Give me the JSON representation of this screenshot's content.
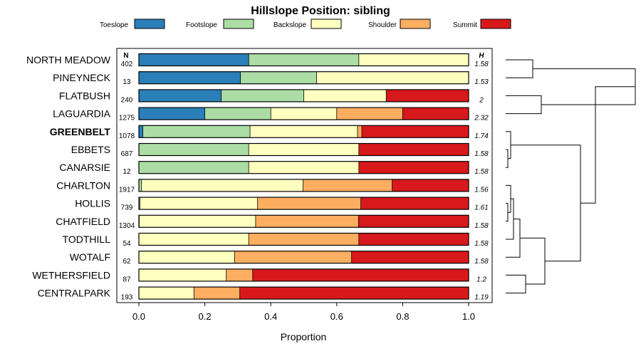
{
  "chart_data": {
    "type": "bar",
    "orientation": "horizontal-stacked",
    "title": "Hillslope Position: sibling",
    "xlabel": "Proportion",
    "ylabel": "",
    "xlim": [
      0,
      1
    ],
    "xticks": [
      0.0,
      0.2,
      0.4,
      0.6,
      0.8,
      1.0
    ],
    "xtick_labels": [
      "0.0",
      "0.2",
      "0.4",
      "0.6",
      "0.8",
      "1.0"
    ],
    "n_header": "N",
    "h_header": "H",
    "legend": [
      {
        "name": "Toeslope",
        "color": "#2b7fb9"
      },
      {
        "name": "Footslope",
        "color": "#abdda4"
      },
      {
        "name": "Backslope",
        "color": "#ffffbf"
      },
      {
        "name": "Shoulder",
        "color": "#fdae61"
      },
      {
        "name": "Summit",
        "color": "#d7191c"
      }
    ],
    "series_names": [
      "Toeslope",
      "Footslope",
      "Backslope",
      "Shoulder",
      "Summit"
    ],
    "rows": [
      {
        "name": "NORTH MEADOW",
        "bold": false,
        "n": "402",
        "h": "1.58",
        "values": [
          0.333,
          0.334,
          0.333,
          0,
          0
        ]
      },
      {
        "name": "PINEYNECK",
        "bold": false,
        "n": "13",
        "h": "1.53",
        "values": [
          0.308,
          0.231,
          0.461,
          0,
          0
        ]
      },
      {
        "name": "FLATBUSH",
        "bold": false,
        "n": "240",
        "h": "2",
        "values": [
          0.25,
          0.25,
          0.25,
          0,
          0.25
        ]
      },
      {
        "name": "LAGUARDIA",
        "bold": false,
        "n": "1275",
        "h": "2.32",
        "values": [
          0.2,
          0.2,
          0.2,
          0.2,
          0.2
        ]
      },
      {
        "name": "GREENBELT",
        "bold": true,
        "n": "1078",
        "h": "1.74",
        "values": [
          0.012,
          0.325,
          0.326,
          0.013,
          0.324
        ]
      },
      {
        "name": "EBBETS",
        "bold": false,
        "n": "687",
        "h": "1.58",
        "values": [
          0,
          0.333,
          0.334,
          0,
          0.333
        ]
      },
      {
        "name": "CANARSIE",
        "bold": false,
        "n": "12",
        "h": "1.58",
        "values": [
          0,
          0.333,
          0.334,
          0,
          0.333
        ]
      },
      {
        "name": "CHARLTON",
        "bold": false,
        "n": "1917",
        "h": "1.56",
        "values": [
          0,
          0.008,
          0.49,
          0.27,
          0.232
        ]
      },
      {
        "name": "HOLLIS",
        "bold": false,
        "n": "739",
        "h": "1.61",
        "values": [
          0,
          0.003,
          0.357,
          0.313,
          0.327
        ]
      },
      {
        "name": "CHATFIELD",
        "bold": false,
        "n": "1304",
        "h": "1.58",
        "values": [
          0,
          0.001,
          0.353,
          0.312,
          0.334
        ]
      },
      {
        "name": "TODTHILL",
        "bold": false,
        "n": "54",
        "h": "1.58",
        "values": [
          0,
          0,
          0.333,
          0.334,
          0.333
        ]
      },
      {
        "name": "WOTALF",
        "bold": false,
        "n": "62",
        "h": "1.58",
        "values": [
          0,
          0,
          0.29,
          0.355,
          0.355
        ]
      },
      {
        "name": "WETHERSFIELD",
        "bold": false,
        "n": "87",
        "h": "1.2",
        "values": [
          0,
          0,
          0.265,
          0.08,
          0.655
        ]
      },
      {
        "name": "CENTRALPARK",
        "bold": false,
        "n": "193",
        "h": "1.19",
        "values": [
          0,
          0,
          0.167,
          0.139,
          0.694
        ]
      }
    ],
    "dendrogram_note": "hierarchical clustering dendrogram of rows shown at right"
  }
}
